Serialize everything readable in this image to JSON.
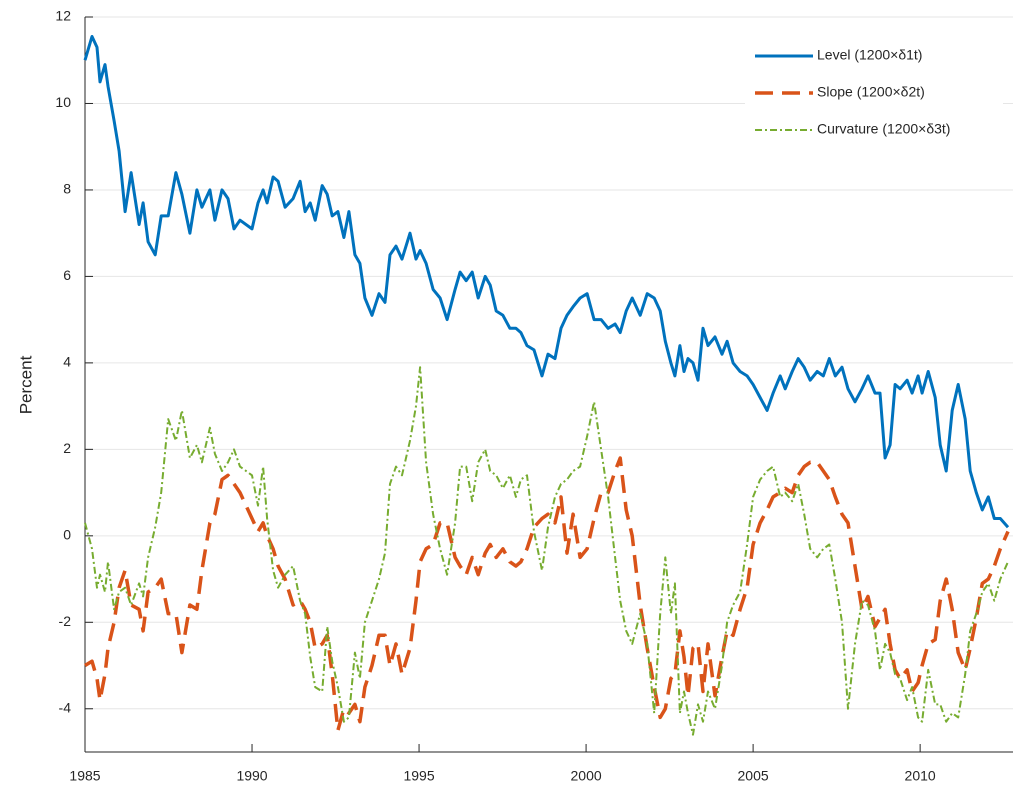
{
  "chart_data": {
    "type": "line",
    "ylabel": "Percent",
    "x": [
      1985,
      1985.21,
      1985.36,
      1985.45,
      1985.6,
      1985.69,
      1985.87,
      1986.02,
      1986.2,
      1986.38,
      1986.62,
      1986.74,
      1986.89,
      1987.1,
      1987.28,
      1987.49,
      1987.72,
      1987.9,
      1988.14,
      1988.35,
      1988.5,
      1988.74,
      1988.89,
      1989.1,
      1989.28,
      1989.46,
      1989.64,
      1990.0,
      1990.18,
      1990.33,
      1990.45,
      1990.63,
      1990.78,
      1990.99,
      1991.23,
      1991.44,
      1991.59,
      1991.74,
      1991.89,
      1992.1,
      1992.25,
      1992.4,
      1992.57,
      1992.75,
      1992.9,
      1993.08,
      1993.23,
      1993.38,
      1993.59,
      1993.8,
      1993.98,
      1994.13,
      1994.31,
      1994.49,
      1994.73,
      1994.91,
      1995.03,
      1995.21,
      1995.42,
      1995.63,
      1995.84,
      1996.08,
      1996.23,
      1996.41,
      1996.59,
      1996.77,
      1996.98,
      1997.13,
      1997.31,
      1997.51,
      1997.72,
      1997.9,
      1998.05,
      1998.23,
      1998.44,
      1998.68,
      1998.86,
      1999.07,
      1999.25,
      1999.43,
      1999.61,
      1999.82,
      2000.03,
      2000.24,
      2000.45,
      2000.66,
      2000.87,
      2001.02,
      2001.2,
      2001.38,
      2001.62,
      2001.83,
      2002.04,
      2002.22,
      2002.37,
      2002.54,
      2002.66,
      2002.81,
      2002.93,
      2003.05,
      2003.2,
      2003.35,
      2003.5,
      2003.65,
      2003.86,
      2004.07,
      2004.22,
      2004.4,
      2004.61,
      2004.82,
      2005.0,
      2005.21,
      2005.42,
      2005.6,
      2005.81,
      2005.96,
      2006.17,
      2006.35,
      2006.53,
      2006.71,
      2006.92,
      2007.1,
      2007.28,
      2007.46,
      2007.66,
      2007.84,
      2008.05,
      2008.26,
      2008.44,
      2008.65,
      2008.8,
      2008.95,
      2009.1,
      2009.25,
      2009.4,
      2009.61,
      2009.76,
      2009.94,
      2010.06,
      2010.24,
      2010.45,
      2010.6,
      2010.78,
      2010.96,
      2011.14,
      2011.35,
      2011.5,
      2011.68,
      2011.86,
      2012.04,
      2012.22,
      2012.4,
      2012.63
    ],
    "series": [
      {
        "name": "Level (1200×δ1t)",
        "color": "#0072bd",
        "dash": "solid",
        "width": 3,
        "values": [
          11.0,
          11.55,
          11.3,
          10.5,
          10.9,
          10.4,
          9.6,
          8.9,
          7.5,
          8.4,
          7.2,
          7.7,
          6.8,
          6.5,
          7.4,
          7.4,
          8.4,
          7.9,
          7.0,
          8.0,
          7.6,
          8.0,
          7.3,
          8.0,
          7.8,
          7.1,
          7.3,
          7.1,
          7.7,
          8.0,
          7.7,
          8.3,
          8.2,
          7.6,
          7.8,
          8.2,
          7.5,
          7.7,
          7.3,
          8.1,
          7.9,
          7.4,
          7.5,
          6.9,
          7.5,
          6.5,
          6.3,
          5.5,
          5.1,
          5.6,
          5.4,
          6.5,
          6.7,
          6.4,
          7.0,
          6.4,
          6.6,
          6.3,
          5.7,
          5.5,
          5.0,
          5.7,
          6.1,
          5.9,
          6.1,
          5.5,
          6.0,
          5.8,
          5.2,
          5.1,
          4.8,
          4.8,
          4.7,
          4.4,
          4.3,
          3.7,
          4.2,
          4.1,
          4.8,
          5.1,
          5.3,
          5.5,
          5.6,
          5.0,
          5.0,
          4.8,
          4.9,
          4.7,
          5.2,
          5.5,
          5.1,
          5.6,
          5.5,
          5.2,
          4.5,
          4.0,
          3.7,
          4.4,
          3.8,
          4.1,
          4.0,
          3.6,
          4.8,
          4.4,
          4.6,
          4.2,
          4.5,
          4.0,
          3.8,
          3.7,
          3.5,
          3.2,
          2.9,
          3.3,
          3.7,
          3.4,
          3.8,
          4.1,
          3.9,
          3.6,
          3.8,
          3.7,
          4.1,
          3.7,
          3.9,
          3.4,
          3.1,
          3.4,
          3.7,
          3.3,
          3.3,
          1.8,
          2.1,
          3.5,
          3.4,
          3.6,
          3.3,
          3.7,
          3.3,
          3.8,
          3.2,
          2.1,
          1.5,
          2.9,
          3.5,
          2.7,
          1.5,
          1.0,
          0.6,
          0.9,
          0.4,
          0.4,
          0.2
        ]
      },
      {
        "name": "Slope (1200×δ2t)",
        "color": "#d95319",
        "dash": "dashed",
        "width": 3.5,
        "values": [
          -3.0,
          -2.9,
          -3.3,
          -3.8,
          -3.2,
          -2.6,
          -2.0,
          -1.2,
          -0.8,
          -1.6,
          -1.7,
          -2.2,
          -1.3,
          -1.2,
          -1.0,
          -1.8,
          -1.8,
          -2.7,
          -1.6,
          -1.7,
          -0.8,
          0.3,
          0.5,
          1.3,
          1.4,
          1.2,
          1.0,
          0.4,
          0.1,
          0.3,
          0.0,
          -0.3,
          -0.7,
          -1.0,
          -1.6,
          -1.5,
          -1.7,
          -2.0,
          -2.6,
          -2.5,
          -2.3,
          -3.2,
          -4.5,
          -4.0,
          -4.1,
          -3.9,
          -4.3,
          -3.5,
          -3.0,
          -2.3,
          -2.3,
          -3.0,
          -2.5,
          -3.2,
          -2.6,
          -1.5,
          -0.6,
          -0.3,
          -0.2,
          0.3,
          0.3,
          -0.5,
          -0.7,
          -0.9,
          -0.5,
          -0.9,
          -0.4,
          -0.2,
          -0.5,
          -0.3,
          -0.6,
          -0.7,
          -0.6,
          -0.3,
          0.2,
          0.4,
          0.5,
          0.3,
          0.9,
          -0.4,
          0.5,
          -0.5,
          -0.3,
          0.4,
          1.0,
          1.0,
          1.5,
          1.8,
          0.6,
          0.0,
          -1.6,
          -2.6,
          -3.5,
          -4.2,
          -4.0,
          -3.3,
          -3.2,
          -2.2,
          -2.8,
          -3.7,
          -2.6,
          -2.5,
          -3.6,
          -2.5,
          -3.7,
          -2.8,
          -2.2,
          -2.3,
          -1.7,
          -1.2,
          -0.2,
          0.3,
          0.6,
          0.9,
          1.0,
          1.1,
          1.0,
          1.4,
          1.6,
          1.7,
          1.7,
          1.5,
          1.3,
          0.9,
          0.5,
          0.3,
          -0.7,
          -1.7,
          -1.4,
          -2.1,
          -1.9,
          -1.7,
          -2.5,
          -3.1,
          -3.3,
          -3.1,
          -3.6,
          -3.4,
          -3.0,
          -2.5,
          -2.4,
          -1.5,
          -1.0,
          -1.7,
          -2.7,
          -3.1,
          -2.6,
          -1.9,
          -1.1,
          -1.0,
          -0.7,
          -0.3,
          0.1
        ]
      },
      {
        "name": "Curvature (1200×δ3t)",
        "color": "#77ac30",
        "dash": "dashdot",
        "width": 2,
        "values": [
          0.3,
          -0.3,
          -1.2,
          -0.9,
          -1.3,
          -0.6,
          -1.7,
          -1.3,
          -1.2,
          -1.6,
          -1.1,
          -1.4,
          -0.5,
          0.2,
          1.0,
          2.7,
          2.2,
          2.9,
          1.8,
          2.1,
          1.7,
          2.5,
          1.9,
          1.5,
          1.7,
          2.0,
          1.6,
          1.4,
          0.7,
          1.6,
          0.4,
          -0.8,
          -1.2,
          -0.9,
          -0.7,
          -1.5,
          -1.8,
          -2.8,
          -3.5,
          -3.6,
          -2.1,
          -2.9,
          -3.5,
          -4.3,
          -4.2,
          -2.7,
          -3.3,
          -2.0,
          -1.5,
          -1.0,
          -0.4,
          1.2,
          1.6,
          1.4,
          2.2,
          3.0,
          3.9,
          1.7,
          0.5,
          -0.3,
          -0.9,
          0.3,
          1.6,
          1.6,
          0.8,
          1.7,
          2.0,
          1.5,
          1.4,
          1.1,
          1.4,
          0.9,
          1.3,
          1.4,
          0.1,
          -0.8,
          0.2,
          0.9,
          1.2,
          1.3,
          1.5,
          1.6,
          2.3,
          3.1,
          2.0,
          0.9,
          -0.5,
          -1.5,
          -2.2,
          -2.5,
          -1.8,
          -2.5,
          -4.1,
          -1.8,
          -0.5,
          -1.8,
          -1.1,
          -4.1,
          -3.6,
          -4.1,
          -4.6,
          -3.9,
          -4.3,
          -3.6,
          -4.0,
          -3.0,
          -2.0,
          -1.6,
          -1.3,
          -0.2,
          0.9,
          1.3,
          1.5,
          1.6,
          0.9,
          1.0,
          0.8,
          1.2,
          0.5,
          -0.3,
          -0.5,
          -0.3,
          -0.2,
          -1.0,
          -2.0,
          -4.0,
          -2.5,
          -1.5,
          -1.6,
          -2.2,
          -3.1,
          -2.5,
          -2.7,
          -3.2,
          -3.3,
          -3.8,
          -3.5,
          -4.2,
          -4.3,
          -3.1,
          -3.9,
          -3.9,
          -4.3,
          -4.1,
          -4.2,
          -3.2,
          -2.2,
          -1.8,
          -1.3,
          -1.1,
          -1.5,
          -1.0,
          -0.6
        ]
      }
    ],
    "xlim": [
      1985,
      2012.78
    ],
    "xticks": [
      1985,
      1990,
      1995,
      2000,
      2005,
      2010
    ],
    "ylim": [
      -5,
      12
    ],
    "yticks": [
      -4,
      -2,
      0,
      2,
      4,
      6,
      8,
      10,
      12
    ],
    "grid": true,
    "legend": "upper right"
  }
}
